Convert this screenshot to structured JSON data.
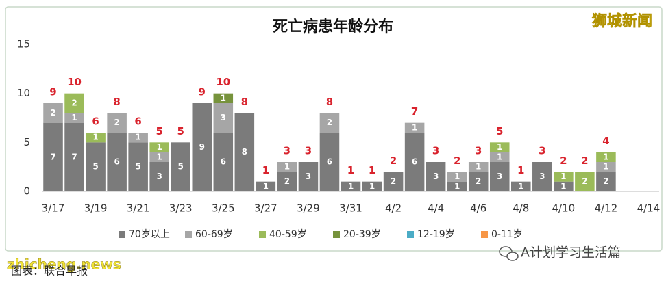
{
  "chart_data": {
    "type": "stacked_bar",
    "title": "死亡病患年龄分布",
    "categories": [
      "3/17",
      null,
      "3/19",
      null,
      "3/21",
      null,
      "3/23",
      null,
      "3/25",
      null,
      "3/27",
      null,
      "3/29",
      null,
      "3/31",
      null,
      "4/2",
      null,
      "4/4",
      null,
      "4/6",
      null,
      "4/8",
      null,
      "4/10",
      null,
      "4/12",
      null,
      "4/14"
    ],
    "series": [
      {
        "name": "70岁以上",
        "color": "#7b7b7b",
        "values": [
          7,
          7,
          5,
          6,
          5,
          3,
          5,
          9,
          6,
          8,
          1,
          2,
          3,
          6,
          1,
          1,
          2,
          6,
          3,
          1,
          2,
          3,
          1,
          3,
          1,
          null,
          2,
          null,
          null
        ]
      },
      {
        "name": "60-69岁",
        "color": "#a6a6a6",
        "values": [
          2,
          1,
          null,
          2,
          1,
          1,
          null,
          null,
          3,
          null,
          null,
          1,
          null,
          2,
          null,
          null,
          null,
          1,
          null,
          1,
          1,
          1,
          null,
          null,
          null,
          null,
          1,
          null,
          null
        ]
      },
      {
        "name": "40-59岁",
        "color": "#9bbb59",
        "values": [
          null,
          2,
          1,
          null,
          null,
          1,
          null,
          null,
          null,
          null,
          null,
          null,
          null,
          null,
          null,
          null,
          null,
          null,
          null,
          null,
          null,
          1,
          null,
          null,
          1,
          2,
          1,
          null,
          null
        ]
      },
      {
        "name": "20-39岁",
        "color": "#77933c",
        "values": [
          null,
          null,
          null,
          null,
          null,
          null,
          null,
          null,
          1,
          null,
          null,
          null,
          null,
          null,
          null,
          null,
          null,
          null,
          null,
          null,
          null,
          null,
          null,
          null,
          null,
          null,
          null,
          null,
          null
        ]
      },
      {
        "name": "12-19岁",
        "color": "#4bacc6",
        "values": [
          null,
          null,
          null,
          null,
          null,
          null,
          null,
          null,
          null,
          null,
          null,
          null,
          null,
          null,
          null,
          null,
          null,
          null,
          null,
          null,
          null,
          null,
          null,
          null,
          null,
          null,
          null,
          null,
          null
        ]
      },
      {
        "name": "0-11岁",
        "color": "#f79646",
        "values": [
          null,
          null,
          null,
          null,
          null,
          null,
          null,
          null,
          null,
          null,
          null,
          null,
          null,
          null,
          null,
          null,
          null,
          null,
          null,
          null,
          null,
          null,
          null,
          null,
          null,
          null,
          null,
          null,
          null
        ]
      }
    ],
    "totals": [
      9,
      10,
      6,
      8,
      6,
      5,
      5,
      9,
      10,
      8,
      1,
      3,
      3,
      8,
      1,
      1,
      2,
      7,
      3,
      2,
      3,
      5,
      1,
      3,
      2,
      2,
      4,
      null,
      null
    ],
    "ylim": [
      0,
      15
    ],
    "yticks": [
      0,
      5,
      10,
      15
    ],
    "grid": false,
    "legend": "bottom"
  },
  "brand": "狮城新闻",
  "watermark": "zhicheng.news",
  "source": "图表：联合早报",
  "account": "A计划学习生活篇"
}
